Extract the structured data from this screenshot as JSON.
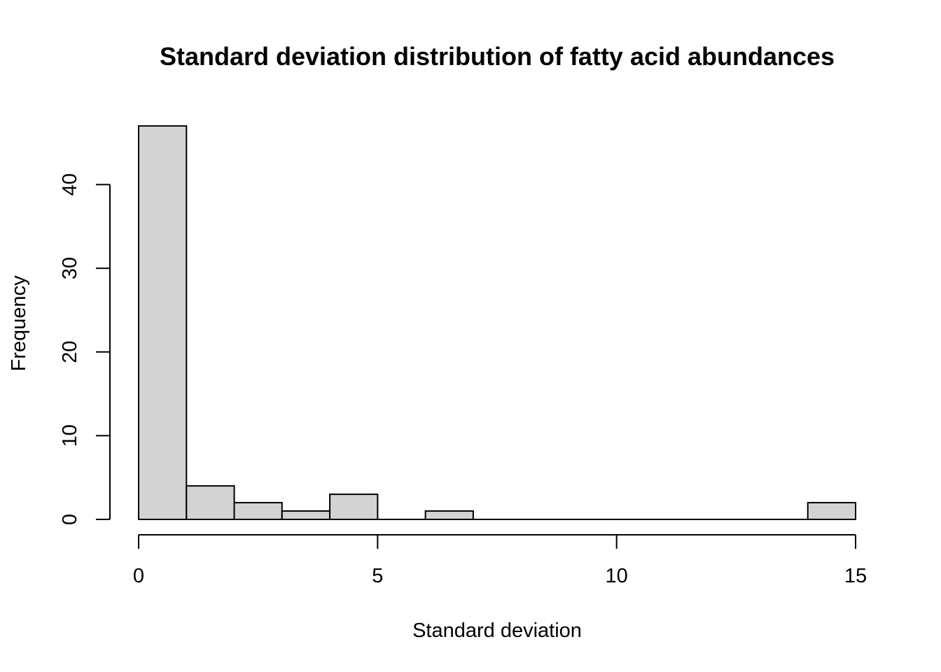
{
  "chart_data": {
    "type": "bar",
    "subtype": "histogram",
    "title": "Standard deviation distribution of fatty acid abundances",
    "xlabel": "Standard deviation",
    "ylabel": "Frequency",
    "bin_edges": [
      0,
      1,
      2,
      3,
      4,
      5,
      6,
      7,
      8,
      9,
      10,
      11,
      12,
      13,
      14,
      15
    ],
    "values": [
      47,
      4,
      2,
      1,
      3,
      0,
      1,
      0,
      0,
      0,
      0,
      0,
      0,
      0,
      2
    ],
    "xlim": [
      0,
      15
    ],
    "ylim": [
      0,
      47
    ],
    "x_ticks": [
      0,
      5,
      10,
      15
    ],
    "x_tick_labels": [
      "0",
      "5",
      "10",
      "15"
    ],
    "y_ticks": [
      0,
      10,
      20,
      30,
      40
    ],
    "y_tick_labels": [
      "0",
      "10",
      "20",
      "30",
      "40"
    ],
    "bar_color": "#d3d3d3",
    "grid": false,
    "legend": "none"
  }
}
